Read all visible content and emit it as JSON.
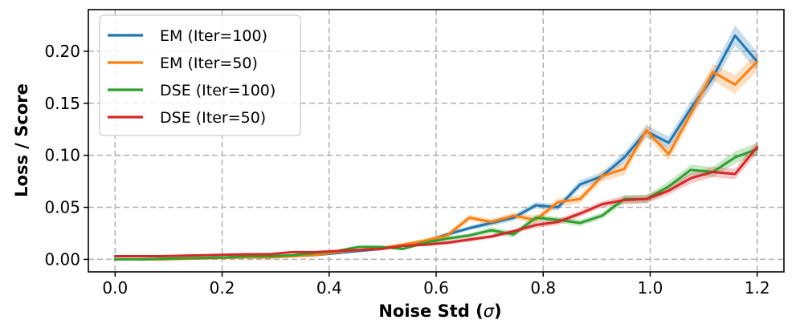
{
  "chart_data": {
    "type": "line",
    "title": "",
    "xlabel_main": "Noise Std (",
    "xlabel_symbol": "σ",
    "xlabel_close": ")",
    "ylabel": "Loss / Score",
    "xlim": [
      -0.05,
      1.25
    ],
    "ylim": [
      -0.012,
      0.24
    ],
    "xticks": [
      0.0,
      0.2,
      0.4,
      0.6,
      0.8,
      1.0,
      1.2
    ],
    "xtick_labels": [
      "0.0",
      "0.2",
      "0.4",
      "0.6",
      "0.8",
      "1.0",
      "1.2"
    ],
    "yticks": [
      0.0,
      0.05,
      0.1,
      0.15,
      0.2
    ],
    "ytick_labels": [
      "0.00",
      "0.05",
      "0.10",
      "0.15",
      "0.20"
    ],
    "grid": true,
    "legend_position": "top-left",
    "x": [
      0.0,
      0.0414,
      0.0828,
      0.1241,
      0.1655,
      0.2069,
      0.2483,
      0.2897,
      0.331,
      0.3724,
      0.4138,
      0.4552,
      0.4966,
      0.5379,
      0.5793,
      0.6207,
      0.6621,
      0.7034,
      0.7448,
      0.7862,
      0.8276,
      0.869,
      0.9103,
      0.9517,
      0.9931,
      1.0345,
      1.0759,
      1.1172,
      1.1586,
      1.2
    ],
    "series": [
      {
        "name": "EM (Iter=100)",
        "color": "#1f77b4",
        "values": [
          0.0,
          0.0,
          0.0,
          0.0005,
          0.001,
          0.0015,
          0.002,
          0.002,
          0.003,
          0.004,
          0.006,
          0.008,
          0.01,
          0.013,
          0.017,
          0.024,
          0.03,
          0.035,
          0.04,
          0.052,
          0.05,
          0.072,
          0.08,
          0.098,
          0.123,
          0.112,
          0.145,
          0.175,
          0.215,
          0.19
        ],
        "band": [
          0.0005,
          0.0005,
          0.0005,
          0.0005,
          0.0005,
          0.0005,
          0.001,
          0.001,
          0.001,
          0.001,
          0.001,
          0.001,
          0.001,
          0.002,
          0.002,
          0.002,
          0.002,
          0.003,
          0.003,
          0.003,
          0.003,
          0.004,
          0.004,
          0.005,
          0.006,
          0.006,
          0.007,
          0.008,
          0.01,
          0.009
        ]
      },
      {
        "name": "EM (Iter=50)",
        "color": "#ff7f0e",
        "values": [
          0.0,
          0.0,
          0.0,
          0.0005,
          0.001,
          0.0015,
          0.002,
          0.002,
          0.003,
          0.004,
          0.007,
          0.009,
          0.011,
          0.014,
          0.018,
          0.023,
          0.04,
          0.036,
          0.042,
          0.038,
          0.055,
          0.058,
          0.08,
          0.087,
          0.124,
          0.101,
          0.14,
          0.18,
          0.168,
          0.19
        ],
        "band": [
          0.0005,
          0.0005,
          0.0005,
          0.0005,
          0.0005,
          0.0005,
          0.001,
          0.001,
          0.001,
          0.001,
          0.001,
          0.001,
          0.001,
          0.002,
          0.002,
          0.003,
          0.003,
          0.003,
          0.003,
          0.004,
          0.004,
          0.004,
          0.005,
          0.006,
          0.006,
          0.006,
          0.007,
          0.008,
          0.009,
          0.009
        ]
      },
      {
        "name": "DSE (Iter=100)",
        "color": "#2ca02c",
        "values": [
          0.0,
          0.0,
          0.0005,
          0.001,
          0.0015,
          0.002,
          0.003,
          0.003,
          0.004,
          0.006,
          0.008,
          0.012,
          0.012,
          0.01,
          0.016,
          0.02,
          0.023,
          0.028,
          0.024,
          0.04,
          0.038,
          0.035,
          0.042,
          0.058,
          0.058,
          0.07,
          0.086,
          0.084,
          0.098,
          0.106
        ],
        "band": [
          0.0005,
          0.0005,
          0.0005,
          0.0005,
          0.0005,
          0.0005,
          0.0005,
          0.0005,
          0.001,
          0.001,
          0.001,
          0.001,
          0.001,
          0.001,
          0.002,
          0.002,
          0.002,
          0.003,
          0.003,
          0.003,
          0.003,
          0.003,
          0.003,
          0.004,
          0.004,
          0.005,
          0.005,
          0.005,
          0.006,
          0.006
        ]
      },
      {
        "name": "DSE (Iter=50)",
        "color": "#d62728",
        "values": [
          0.003,
          0.003,
          0.003,
          0.0035,
          0.004,
          0.0045,
          0.005,
          0.005,
          0.007,
          0.007,
          0.008,
          0.009,
          0.01,
          0.013,
          0.014,
          0.016,
          0.019,
          0.022,
          0.027,
          0.033,
          0.036,
          0.044,
          0.053,
          0.057,
          0.058,
          0.066,
          0.078,
          0.084,
          0.082,
          0.108
        ],
        "band": [
          0.0005,
          0.0005,
          0.0005,
          0.0005,
          0.0005,
          0.0005,
          0.0005,
          0.0005,
          0.001,
          0.001,
          0.001,
          0.001,
          0.001,
          0.001,
          0.001,
          0.002,
          0.002,
          0.002,
          0.002,
          0.003,
          0.003,
          0.003,
          0.003,
          0.004,
          0.004,
          0.004,
          0.005,
          0.005,
          0.005,
          0.006
        ]
      }
    ]
  }
}
